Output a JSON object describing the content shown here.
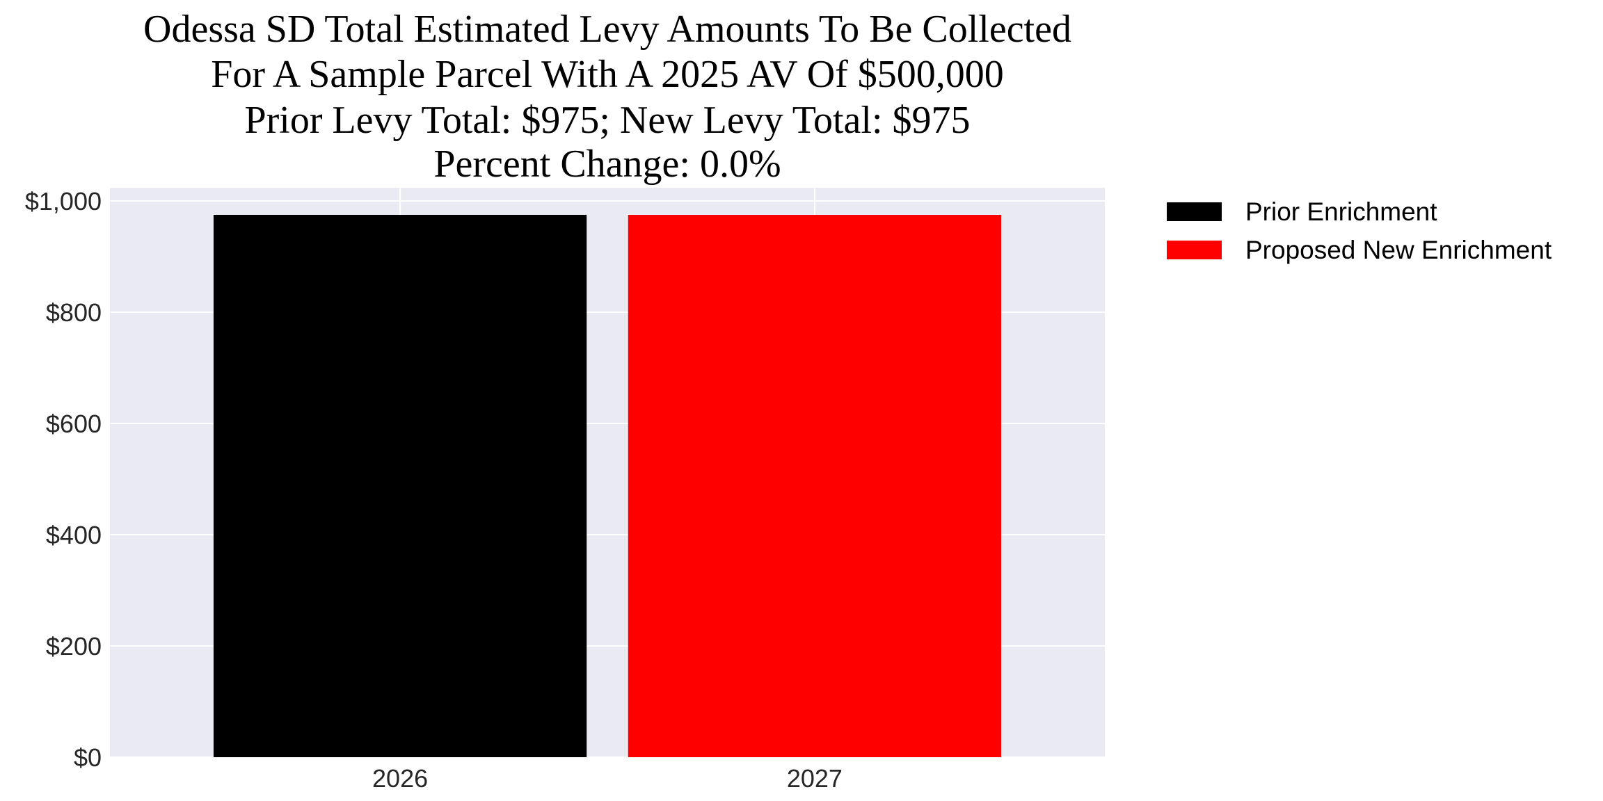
{
  "chart_data": {
    "type": "bar",
    "title_lines": [
      "Odessa SD Total Estimated Levy Amounts To Be Collected",
      "For A Sample Parcel With A 2025 AV Of $500,000",
      "Prior Levy Total:  $975; New Levy Total: $975",
      "Percent Change: 0.0%"
    ],
    "categories": [
      "2026",
      "2027"
    ],
    "values": [
      975,
      975
    ],
    "bar_colors": [
      "#000000",
      "#ff0000"
    ],
    "xlabel": "",
    "ylabel": "",
    "ylim": [
      0,
      1025
    ],
    "yticks": [
      0,
      200,
      400,
      600,
      800,
      1000
    ],
    "ytick_labels": [
      "$0",
      "$200",
      "$400",
      "$600",
      "$800",
      "$1,000"
    ],
    "grid": true,
    "background": "#eaeaf2",
    "legend": {
      "placement": "outside-top-right",
      "entries": [
        {
          "label": "Prior Enrichment",
          "color": "#000000"
        },
        {
          "label": "Proposed New Enrichment",
          "color": "#ff0000"
        }
      ]
    }
  }
}
